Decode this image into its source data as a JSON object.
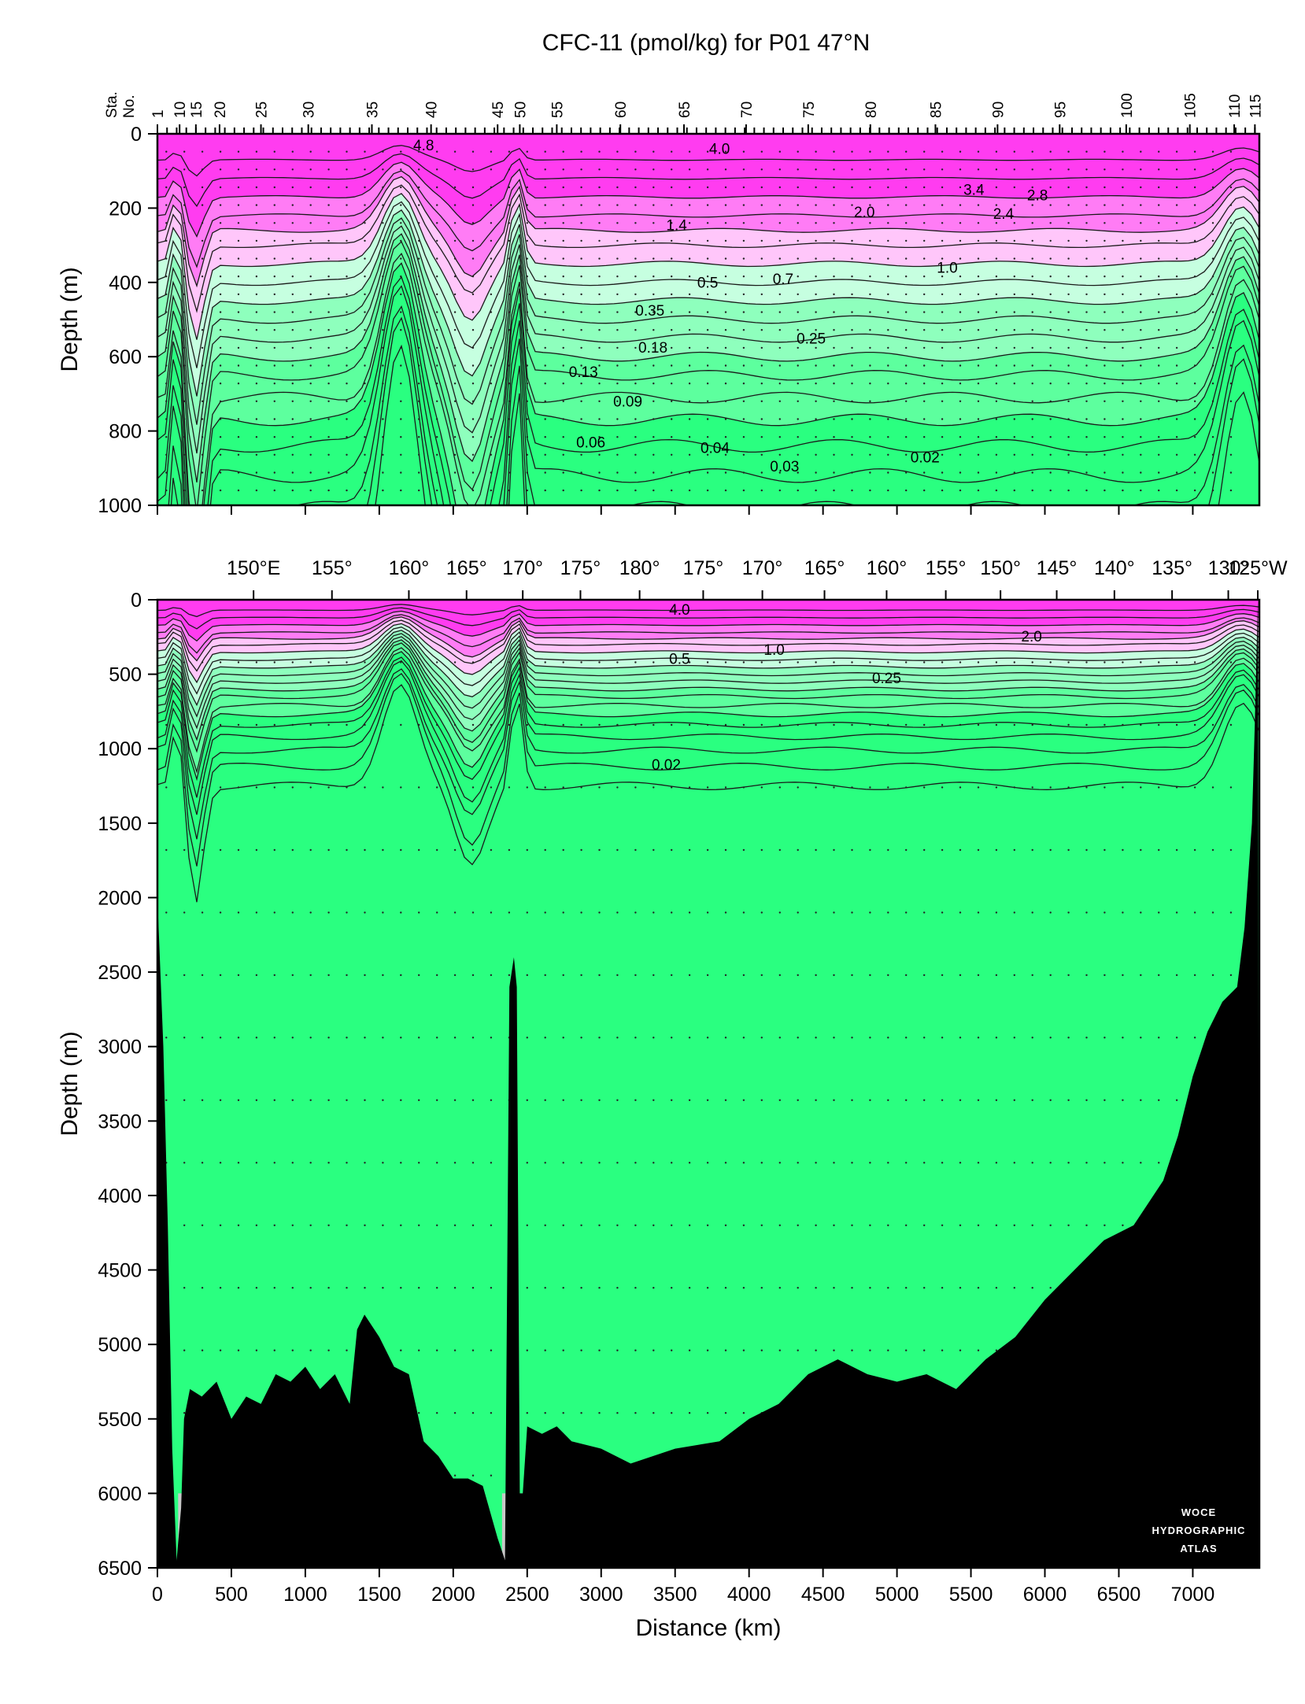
{
  "title": "CFC-11 (pmol/kg) for P01 47°N",
  "logo": {
    "lines": [
      "WOCE",
      "HYDROGRAPHIC",
      "ATLAS"
    ]
  },
  "colors": {
    "magenta_high": "#ff3cf0",
    "magenta_mid": "#ff7cf5",
    "magenta_low": "#ffc6fa",
    "green_pale": "#c6ffe0",
    "green_light": "#8effbd",
    "green_mid": "#5dff9e",
    "green_base": "#2aff80",
    "bottom": "#000000",
    "below_section": "#c8c8c8"
  },
  "chart_data": [
    {
      "type": "heatmap",
      "panel": "upper",
      "variable": "CFC-11 (pmol/kg)",
      "ylabel": "Depth (m)",
      "ylim": [
        1000,
        0
      ],
      "yticks": [
        "0",
        "200",
        "400",
        "600",
        "800",
        "1000"
      ],
      "xlim": [
        0,
        7450
      ],
      "station_axis_label": [
        "Sta.",
        "No."
      ],
      "station_ticks": [
        "1",
        "10",
        "15",
        "20",
        "25",
        "30",
        "35",
        "40",
        "45",
        "50",
        "55",
        "60",
        "65",
        "70",
        "75",
        "80",
        "85",
        "90",
        "95",
        "100",
        "105",
        "110",
        "115"
      ],
      "station_distance_km": [
        0,
        150,
        260,
        420,
        700,
        1020,
        1450,
        1850,
        2300,
        2450,
        2700,
        3130,
        3560,
        3980,
        4400,
        4820,
        5260,
        5680,
        6100,
        6550,
        6980,
        7280,
        7420
      ],
      "contour_labels": [
        {
          "label": "4.8",
          "distance_km": 1800,
          "depth_m": 40
        },
        {
          "label": "4.0",
          "distance_km": 3800,
          "depth_m": 50
        },
        {
          "label": "3.4",
          "distance_km": 5520,
          "depth_m": 160
        },
        {
          "label": "2.8",
          "distance_km": 5950,
          "depth_m": 175
        },
        {
          "label": "2.4",
          "distance_km": 5720,
          "depth_m": 225
        },
        {
          "label": "2.0",
          "distance_km": 4780,
          "depth_m": 220
        },
        {
          "label": "1.4",
          "distance_km": 3510,
          "depth_m": 255
        },
        {
          "label": "1.0",
          "distance_km": 5340,
          "depth_m": 370
        },
        {
          "label": "0.7",
          "distance_km": 4230,
          "depth_m": 400
        },
        {
          "label": "0.5",
          "distance_km": 3720,
          "depth_m": 410
        },
        {
          "label": "0.35",
          "distance_km": 3330,
          "depth_m": 485
        },
        {
          "label": "0.25",
          "distance_km": 4420,
          "depth_m": 560
        },
        {
          "label": "0.18",
          "distance_km": 3350,
          "depth_m": 585
        },
        {
          "label": "0.13",
          "distance_km": 2880,
          "depth_m": 650
        },
        {
          "label": "0.09",
          "distance_km": 3180,
          "depth_m": 730
        },
        {
          "label": "0.06",
          "distance_km": 2930,
          "depth_m": 840
        },
        {
          "label": "0.04",
          "distance_km": 3770,
          "depth_m": 855
        },
        {
          "label": "0.03",
          "distance_km": 4240,
          "depth_m": 905
        },
        {
          "label": "0.02",
          "distance_km": 5190,
          "depth_m": 880
        }
      ]
    },
    {
      "type": "heatmap",
      "panel": "lower",
      "variable": "CFC-11 (pmol/kg)",
      "xlabel": "Distance (km)",
      "ylabel": "Depth (m)",
      "xlim": [
        0,
        7450
      ],
      "ylim": [
        6500,
        0
      ],
      "xticks": [
        "0",
        "500",
        "1000",
        "1500",
        "2000",
        "2500",
        "3000",
        "3500",
        "4000",
        "4500",
        "5000",
        "5500",
        "6000",
        "6500",
        "7000"
      ],
      "yticks": [
        "0",
        "500",
        "1000",
        "1500",
        "2000",
        "2500",
        "3000",
        "3500",
        "4000",
        "4500",
        "5000",
        "5500",
        "6000",
        "6500"
      ],
      "longitude_ticks": [
        "150°E",
        "155°",
        "160°",
        "165°",
        "170°",
        "175°",
        "180°",
        "175°",
        "170°",
        "165°",
        "160°",
        "155°",
        "150°",
        "145°",
        "140°",
        "135°",
        "130°",
        "125°W"
      ],
      "longitude_distance_km": [
        650,
        1180,
        1700,
        2090,
        2470,
        2860,
        3260,
        3690,
        4090,
        4510,
        4930,
        5330,
        5700,
        6080,
        6470,
        6860,
        7240,
        7530
      ],
      "contour_labels": [
        {
          "label": "4.0",
          "distance_km": 3530,
          "depth_m": 90
        },
        {
          "label": "2.0",
          "distance_km": 5910,
          "depth_m": 270
        },
        {
          "label": "1.0",
          "distance_km": 4170,
          "depth_m": 360
        },
        {
          "label": "0.5",
          "distance_km": 3530,
          "depth_m": 420
        },
        {
          "label": "0.25",
          "distance_km": 4930,
          "depth_m": 550
        },
        {
          "label": "0.02",
          "distance_km": 3440,
          "depth_m": 1130
        }
      ],
      "bottom_profile": {
        "distance_km": [
          0,
          40,
          70,
          100,
          130,
          160,
          180,
          220,
          300,
          400,
          500,
          600,
          700,
          800,
          900,
          1000,
          1100,
          1200,
          1300,
          1350,
          1400,
          1500,
          1600,
          1700,
          1800,
          1900,
          2000,
          2100,
          2200,
          2300,
          2350,
          2380,
          2410,
          2430,
          2450,
          2470,
          2500,
          2600,
          2700,
          2800,
          3000,
          3200,
          3500,
          3800,
          4000,
          4200,
          4400,
          4600,
          4800,
          5000,
          5200,
          5400,
          5600,
          5800,
          6000,
          6200,
          6400,
          6600,
          6800,
          6900,
          7000,
          7100,
          7200,
          7300,
          7350,
          7400,
          7420,
          7440
        ],
        "depth_m": [
          2000,
          3000,
          4200,
          5700,
          6450,
          6100,
          5500,
          5300,
          5350,
          5250,
          5500,
          5350,
          5400,
          5200,
          5250,
          5150,
          5300,
          5200,
          5400,
          4900,
          4800,
          4950,
          5150,
          5200,
          5650,
          5750,
          5900,
          5900,
          5950,
          6300,
          6450,
          2600,
          2400,
          2600,
          6000,
          6000,
          5550,
          5600,
          5550,
          5650,
          5700,
          5800,
          5700,
          5650,
          5500,
          5400,
          5200,
          5100,
          5200,
          5250,
          5200,
          5300,
          5100,
          4950,
          4700,
          4500,
          4300,
          4200,
          3900,
          3600,
          3200,
          2900,
          2700,
          2600,
          2200,
          1500,
          800,
          0
        ]
      }
    }
  ]
}
